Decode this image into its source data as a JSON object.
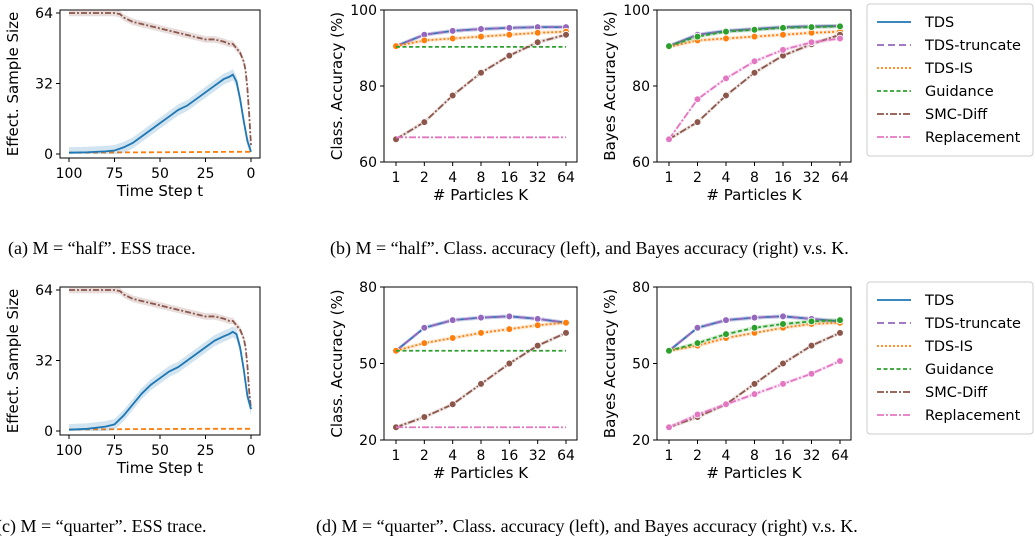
{
  "colors": {
    "TDS": "#1f77b4",
    "TDS-truncate": "#9467bd",
    "TDS-IS": "#ff7f0e",
    "Guidance": "#2ca02c",
    "SMC-Diff": "#8c564b",
    "Replacement": "#e377c2"
  },
  "legends": [
    {
      "items": [
        "TDS",
        "TDS-truncate",
        "TDS-IS",
        "Guidance",
        "SMC-Diff",
        "Replacement"
      ]
    },
    {
      "items": [
        "TDS",
        "TDS-truncate",
        "TDS-IS",
        "Guidance",
        "SMC-Diff",
        "Replacement"
      ]
    }
  ],
  "captions": {
    "a": "(a) M = “half”. ESS trace.",
    "b": "(b) M = “half”. Class. accuracy (left), and Bayes accuracy (right) v.s. K.",
    "c": "(c) M = “quarter”. ESS trace.",
    "d": "(d) M = “quarter”. Class. accuracy (left), and Bayes accuracy (right) v.s. K."
  },
  "chart_data": [
    {
      "id": "a",
      "type": "line",
      "xlabel": "Time Step t",
      "ylabel": "Effect. Sample Size",
      "xlim": [
        100,
        0
      ],
      "ylim": [
        0,
        64
      ],
      "xticks": [
        100,
        75,
        50,
        25,
        0
      ],
      "yticks": [
        0,
        32,
        64
      ],
      "series": [
        {
          "name": "SMC-Diff",
          "style": "dashdot",
          "x": [
            100,
            90,
            80,
            75,
            72,
            70,
            65,
            60,
            55,
            50,
            45,
            40,
            35,
            30,
            25,
            20,
            15,
            12,
            10,
            8,
            6,
            4,
            3,
            2,
            1,
            0
          ],
          "y": [
            64,
            64,
            64,
            64,
            63.5,
            62,
            60,
            59,
            58,
            57,
            56,
            55,
            54,
            53,
            52,
            52,
            51,
            50,
            50,
            48,
            46,
            42,
            38,
            30,
            18,
            4
          ]
        },
        {
          "name": "TDS-IS",
          "style": "dashed",
          "x": [
            100,
            75,
            50,
            25,
            10,
            0
          ],
          "y": [
            0.6,
            0.7,
            0.8,
            0.9,
            1.0,
            1.0
          ]
        },
        {
          "name": "TDS",
          "style": "solid",
          "x": [
            100,
            90,
            80,
            75,
            70,
            65,
            60,
            55,
            50,
            45,
            40,
            35,
            30,
            25,
            20,
            15,
            12,
            10,
            8,
            6,
            4,
            2,
            0
          ],
          "y": [
            0.6,
            0.8,
            1.2,
            1.6,
            3,
            5,
            8,
            11,
            14,
            17,
            20,
            22,
            25,
            28,
            31,
            34,
            35,
            36,
            33,
            25,
            15,
            6,
            1
          ]
        }
      ]
    },
    {
      "id": "b-left",
      "type": "line",
      "xlabel": "# Particles K",
      "ylabel": "Class. Accuracy (%)",
      "categories": [
        "1",
        "2",
        "4",
        "8",
        "16",
        "32",
        "64"
      ],
      "ylim": [
        60,
        100
      ],
      "yticks": [
        60,
        80,
        100
      ],
      "series": [
        {
          "name": "TDS",
          "values": [
            90.5,
            93.5,
            94.5,
            95,
            95.3,
            95.5,
            95.5
          ]
        },
        {
          "name": "TDS-truncate",
          "values": [
            90.5,
            93.5,
            94.5,
            95,
            95.3,
            95.5,
            95.5
          ]
        },
        {
          "name": "TDS-IS",
          "values": [
            90.5,
            92,
            92.5,
            93,
            93.5,
            94,
            94.3
          ]
        },
        {
          "name": "Guidance",
          "values": [
            90.3,
            90.3,
            90.3,
            90.3,
            90.3,
            90.3,
            90.3
          ]
        },
        {
          "name": "SMC-Diff",
          "values": [
            66,
            70.5,
            77.5,
            83.5,
            88,
            91.5,
            93.5
          ]
        },
        {
          "name": "Replacement",
          "values": [
            66.5,
            66.5,
            66.5,
            66.5,
            66.5,
            66.5,
            66.5
          ]
        }
      ]
    },
    {
      "id": "b-right",
      "type": "line",
      "xlabel": "# Particles K",
      "ylabel": "Bayes Accuracy (%)",
      "categories": [
        "1",
        "2",
        "4",
        "8",
        "16",
        "32",
        "64"
      ],
      "ylim": [
        60,
        100
      ],
      "yticks": [
        60,
        80,
        100
      ],
      "series": [
        {
          "name": "TDS",
          "values": [
            90.5,
            93.5,
            94.5,
            95,
            95.5,
            95.7,
            95.8
          ]
        },
        {
          "name": "TDS-truncate",
          "values": [
            90.5,
            93.5,
            94.5,
            95,
            95.5,
            95.7,
            95.8
          ]
        },
        {
          "name": "TDS-IS",
          "values": [
            90.3,
            92,
            92.5,
            93,
            93.5,
            94,
            94.3
          ]
        },
        {
          "name": "Guidance",
          "values": [
            90.5,
            93,
            94.3,
            94.8,
            95.3,
            95.5,
            95.7
          ]
        },
        {
          "name": "SMC-Diff",
          "values": [
            66,
            70.5,
            77.5,
            83.5,
            88,
            91,
            93.5
          ]
        },
        {
          "name": "Replacement",
          "values": [
            66,
            76.5,
            82,
            86.5,
            89.5,
            91.5,
            92.5
          ]
        }
      ]
    },
    {
      "id": "c",
      "type": "line",
      "xlabel": "Time Step t",
      "ylabel": "Effect. Sample Size",
      "xlim": [
        100,
        0
      ],
      "ylim": [
        0,
        64
      ],
      "xticks": [
        100,
        75,
        50,
        25,
        0
      ],
      "yticks": [
        0,
        32,
        64
      ],
      "series": [
        {
          "name": "SMC-Diff",
          "style": "dashdot",
          "x": [
            100,
            90,
            80,
            75,
            72,
            70,
            65,
            60,
            55,
            50,
            45,
            40,
            35,
            30,
            25,
            20,
            15,
            12,
            10,
            8,
            6,
            4,
            3,
            2,
            1,
            0
          ],
          "y": [
            64,
            64,
            64,
            64,
            63.5,
            62,
            60,
            59,
            58,
            57,
            56,
            55,
            54,
            53,
            52,
            52,
            51,
            50,
            50,
            48,
            46,
            42,
            38,
            30,
            18,
            10
          ]
        },
        {
          "name": "TDS-IS",
          "style": "dashed",
          "x": [
            100,
            75,
            50,
            25,
            10,
            0
          ],
          "y": [
            0.7,
            0.8,
            0.9,
            1.0,
            1.0,
            1.0
          ]
        },
        {
          "name": "TDS",
          "style": "solid",
          "x": [
            100,
            90,
            80,
            75,
            70,
            65,
            60,
            55,
            50,
            45,
            40,
            35,
            30,
            25,
            20,
            15,
            12,
            10,
            8,
            6,
            4,
            2,
            0
          ],
          "y": [
            0.6,
            1.0,
            2,
            3,
            7,
            12,
            17,
            21,
            24,
            27,
            29,
            32,
            35,
            38,
            41,
            43,
            44,
            45,
            44,
            38,
            28,
            16,
            10
          ]
        }
      ]
    },
    {
      "id": "d-left",
      "type": "line",
      "xlabel": "# Particles K",
      "ylabel": "Class. Accuracy (%)",
      "categories": [
        "1",
        "2",
        "4",
        "8",
        "16",
        "32",
        "64"
      ],
      "ylim": [
        20,
        80
      ],
      "yticks": [
        20,
        50,
        80
      ],
      "series": [
        {
          "name": "TDS",
          "values": [
            55,
            64,
            67,
            68,
            68.5,
            67.5,
            66
          ]
        },
        {
          "name": "TDS-truncate",
          "values": [
            55,
            64,
            67,
            68,
            68.5,
            67.5,
            66
          ]
        },
        {
          "name": "TDS-IS",
          "values": [
            55,
            58,
            60,
            62,
            63.5,
            65,
            66
          ]
        },
        {
          "name": "Guidance",
          "values": [
            55,
            55,
            55,
            55,
            55,
            55,
            55
          ]
        },
        {
          "name": "SMC-Diff",
          "values": [
            25,
            29,
            34,
            42,
            50,
            57,
            62
          ]
        },
        {
          "name": "Replacement",
          "values": [
            25,
            25,
            25,
            25,
            25,
            25,
            25
          ]
        }
      ]
    },
    {
      "id": "d-right",
      "type": "line",
      "xlabel": "# Particles K",
      "ylabel": "Bayes Accuracy (%)",
      "categories": [
        "1",
        "2",
        "4",
        "8",
        "16",
        "32",
        "64"
      ],
      "ylim": [
        20,
        80
      ],
      "yticks": [
        20,
        50,
        80
      ],
      "series": [
        {
          "name": "TDS",
          "values": [
            55,
            64,
            67,
            68,
            68.5,
            67.5,
            66.5
          ]
        },
        {
          "name": "TDS-truncate",
          "values": [
            55,
            64,
            67,
            68,
            68.5,
            67.5,
            66.5
          ]
        },
        {
          "name": "TDS-IS",
          "values": [
            55,
            57,
            60,
            62,
            64,
            65.5,
            66
          ]
        },
        {
          "name": "Guidance",
          "values": [
            55,
            58,
            61.5,
            64,
            65.5,
            66.5,
            67
          ]
        },
        {
          "name": "SMC-Diff",
          "values": [
            25,
            29,
            34,
            42,
            50,
            57,
            62
          ]
        },
        {
          "name": "Replacement",
          "values": [
            25,
            30,
            34,
            38,
            42,
            46,
            51
          ]
        }
      ]
    }
  ]
}
